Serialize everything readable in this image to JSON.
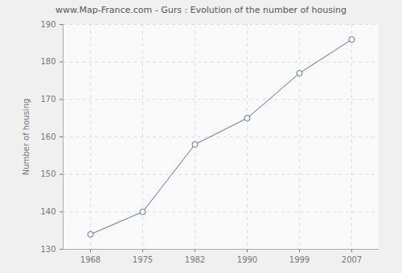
{
  "chart_data": {
    "type": "line",
    "title": "www.Map-France.com - Gurs : Evolution of the number of housing",
    "y_label": "Number of housing",
    "categories": [
      "1968",
      "1975",
      "1982",
      "1990",
      "1999",
      "2007"
    ],
    "values": [
      134,
      140,
      158,
      165,
      177,
      186
    ],
    "color": "#4a74a8",
    "marker": "circle",
    "ylim": [
      130,
      190
    ],
    "yticks": [
      130,
      140,
      150,
      160,
      170,
      180,
      190
    ],
    "grid": true
  }
}
